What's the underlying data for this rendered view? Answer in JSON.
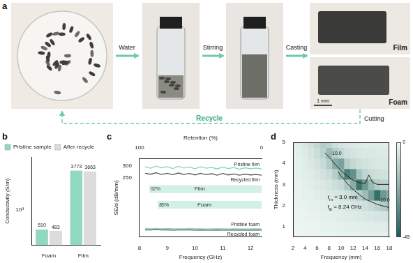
{
  "panel_labels": [
    "a",
    "b",
    "c",
    "d"
  ],
  "process": {
    "steps": [
      "Water",
      "Stirring",
      "Casting"
    ],
    "products": [
      "Film",
      "Foam"
    ],
    "scale_bar": "1 mm",
    "return_label": "Recycle",
    "cut_label": "Cutting"
  },
  "chart_data": [
    {
      "type": "bar",
      "ylabel": "Conductivity (S/m)",
      "categories": [
        "Foam",
        "Film"
      ],
      "series": [
        {
          "name": "Pristine sample",
          "color": "#8fd9c3",
          "values": [
            510,
            3773
          ]
        },
        {
          "name": "After recycle",
          "color": "#dcdcdc",
          "values": [
            483,
            3663
          ]
        }
      ],
      "log": "y",
      "ylim": [
        300,
        6000
      ],
      "yticks": [
        {
          "value": 1000,
          "label": "10³"
        }
      ],
      "data_labels": true,
      "legend": "top-left",
      "grid": false
    },
    {
      "type": "line",
      "xlabel": "Frequency (GHz)",
      "ylabel": "SE/d (dB/mm)",
      "x": [
        8.2,
        8.4,
        8.6,
        8.8,
        9.0,
        9.2,
        9.4,
        9.6,
        9.8,
        10.0,
        10.2,
        10.4,
        10.6,
        10.8,
        11.0,
        11.2,
        11.4,
        11.6,
        11.8,
        12.0,
        12.2,
        12.4
      ],
      "series": [
        {
          "name": "Pristine film",
          "color": "#7fd6bd",
          "values": [
            295,
            289,
            298,
            291,
            296,
            288,
            297,
            290,
            294,
            287,
            295,
            289,
            293,
            286,
            294,
            288,
            292,
            285,
            291,
            287,
            290,
            286
          ]
        },
        {
          "name": "Recycled film",
          "color": "#555555",
          "values": [
            268,
            264,
            270,
            263,
            268,
            262,
            269,
            263,
            267,
            261,
            268,
            262,
            266,
            260,
            267,
            261,
            265,
            260,
            264,
            261,
            263,
            260
          ]
        },
        {
          "name": "Pristine foam",
          "color": "#7fd6bd",
          "values": [
            36,
            35,
            36,
            35,
            36,
            35,
            35,
            35,
            36,
            35,
            35,
            34,
            35,
            35,
            35,
            34,
            35,
            34,
            34,
            34,
            35,
            34
          ]
        },
        {
          "name": "Recycled foam",
          "color": "#555555",
          "values": [
            30,
            30,
            31,
            30,
            30,
            29,
            30,
            30,
            30,
            29,
            30,
            29,
            29,
            30,
            29,
            29,
            29,
            29,
            29,
            29,
            29,
            29
          ]
        }
      ],
      "xlim": [
        8,
        12.4
      ],
      "xticks": [
        8,
        9,
        10,
        11,
        12
      ],
      "ylim": [
        0,
        330
      ],
      "yticks": [
        250,
        300
      ],
      "grid": false,
      "retention": {
        "label": "Retention (%)",
        "xlim": [
          100,
          0
        ],
        "xticks": [
          100,
          0
        ],
        "color": "#d3f0e6",
        "bars": [
          {
            "name": "Film",
            "value": 92,
            "label": "92%"
          },
          {
            "name": "Foam",
            "value": 85,
            "label": "85%"
          }
        ]
      }
    },
    {
      "type": "heatmap",
      "xlabel": "Frequency (mm)",
      "ylabel": "Thickness (mm)",
      "x": [
        2,
        3,
        4,
        5,
        6,
        7,
        8,
        9,
        10,
        11,
        12,
        13,
        14,
        15,
        16,
        17,
        18
      ],
      "y": [
        0.5,
        1.0,
        1.5,
        2.0,
        2.5,
        3.0,
        3.5,
        4.0,
        4.5,
        5.0
      ],
      "z": [
        [
          -0.2,
          -0.3,
          -0.4,
          -0.5,
          -0.6,
          -0.7,
          -0.8,
          -0.9,
          -1,
          -1.1,
          -1.2,
          -1.3,
          -1.4,
          -1.5,
          -1.6,
          -1.7,
          -1.8
        ],
        [
          -0.4,
          -0.5,
          -0.7,
          -0.9,
          -1.1,
          -1.3,
          -1.5,
          -1.7,
          -1.9,
          -2.1,
          -2.3,
          -2.5,
          -2.7,
          -2.9,
          -3.1,
          -3.3,
          -3.5
        ],
        [
          -0.6,
          -0.8,
          -1,
          -1.3,
          -1.6,
          -1.9,
          -2.2,
          -2.5,
          -2.8,
          -3.1,
          -3.5,
          -3.9,
          -4.3,
          -4.7,
          -5.2,
          -5.7,
          -6.2
        ],
        [
          -0.8,
          -1,
          -1.3,
          -1.7,
          -2.2,
          -2.6,
          -3,
          -3.4,
          -3.9,
          -4.5,
          -5.2,
          -6,
          -7,
          -8.5,
          -10.5,
          -13,
          -16
        ],
        [
          -1,
          -1.3,
          -1.7,
          -2.2,
          -2.8,
          -3.4,
          -4,
          -4.8,
          -5.6,
          -7,
          -9,
          -12,
          -17,
          -26,
          -40,
          -28,
          -22
        ],
        [
          -1.2,
          -1.6,
          -2.1,
          -2.8,
          -3.6,
          -4.5,
          -5.5,
          -7,
          -9,
          -14,
          -22,
          -38,
          -28,
          -18,
          -13,
          -11,
          -10
        ],
        [
          -1.4,
          -1.9,
          -2.6,
          -3.5,
          -4.6,
          -6,
          -8,
          -12,
          -20,
          -35,
          -30,
          -15,
          -10,
          -8,
          -7,
          -6.3,
          -6
        ],
        [
          -1.6,
          -2.2,
          -3.1,
          -4.3,
          -5.9,
          -8.2,
          -13,
          -22,
          -25,
          -12,
          -9,
          -7,
          -6,
          -5.2,
          -4.8,
          -4.5,
          -4.3
        ],
        [
          -1.8,
          -2.6,
          -3.7,
          -5.3,
          -7.5,
          -11,
          -18,
          -12,
          -9,
          -6.5,
          -5.5,
          -4.8,
          -4.3,
          -4,
          -3.8,
          -3.6,
          -3.5
        ],
        [
          -2,
          -3,
          -4.3,
          -6.5,
          -9,
          -12.5,
          -11,
          -7,
          -5.5,
          -4.5,
          -4,
          -3.6,
          -3.3,
          -3.2,
          -3.1,
          -3,
          -2.9
        ]
      ],
      "xlim": [
        2,
        18
      ],
      "xticks": [
        2,
        4,
        6,
        8,
        10,
        12,
        14,
        16,
        18
      ],
      "ylim": [
        0.5,
        5
      ],
      "yticks": [
        1,
        2,
        3,
        4,
        5
      ],
      "grid": false,
      "colorbar": {
        "range": [
          -45,
          0
        ],
        "ticks": [
          0,
          -45
        ],
        "colors": [
          "#1d5e57",
          "#eef7f3"
        ]
      },
      "contours": [
        {
          "label": "-10.0",
          "color": "#222222",
          "x": [
            7.3,
            8,
            9,
            10,
            11,
            12,
            13,
            14,
            14.6,
            15.2,
            16,
            18
          ],
          "y": [
            4.5,
            4.3,
            3.95,
            3.65,
            3.4,
            3.2,
            3.08,
            3.05,
            3.45,
            3.1,
            3.0,
            3.0
          ]
        },
        {
          "label": "-10.0",
          "color": "#222222",
          "x": [
            18,
            16,
            14,
            12,
            11,
            10,
            9.5
          ],
          "y": [
            1.9,
            2.05,
            2.3,
            2.75,
            3.05,
            3.4,
            3.6
          ]
        }
      ],
      "annotations": [
        {
          "symbol": "t",
          "subscript": "m",
          "text": " = 3.0 mm"
        },
        {
          "symbol": "f",
          "subscript": "E",
          "text": " = 8.24 GHz"
        }
      ]
    }
  ]
}
